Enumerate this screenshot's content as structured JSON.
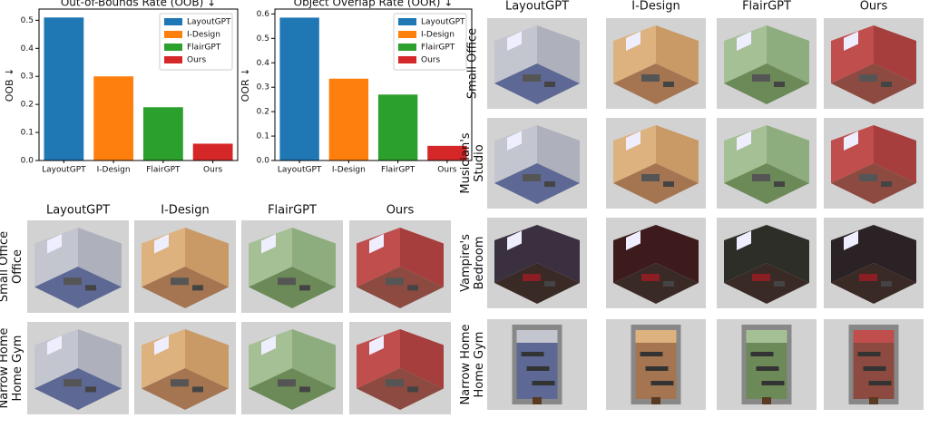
{
  "chart_data": [
    {
      "type": "bar",
      "title": "Out-of-Bounds Rate (OOB) ↓",
      "ylabel": "OOB ↓",
      "categories": [
        "LayoutGPT",
        "I-Design",
        "FlairGPT",
        "Ours"
      ],
      "values": [
        0.51,
        0.3,
        0.19,
        0.06
      ],
      "colors": [
        "#1f77b4",
        "#ff7f0e",
        "#2ca02c",
        "#d62728"
      ],
      "ylim": [
        0,
        0.54
      ],
      "yticks": [
        {
          "value": 0,
          "label": "0.0"
        },
        0.1,
        0.2,
        0.3,
        0.4,
        0.5
      ],
      "legend": "upper right"
    },
    {
      "type": "bar",
      "title": "Object Overlap Rate (OOR) ↓",
      "ylabel": "OOR ↓",
      "categories": [
        "LayoutGPT",
        "I-Design",
        "FlairGPT",
        "Ours"
      ],
      "values": [
        0.585,
        0.335,
        0.27,
        0.06
      ],
      "colors": [
        "#1f77b4",
        "#ff7f0e",
        "#2ca02c",
        "#d62728"
      ],
      "ylim": [
        0,
        0.62
      ],
      "yticks": [
        {
          "value": 0,
          "label": "0.0"
        },
        0.1,
        0.2,
        0.3,
        0.4,
        0.5,
        0.6
      ],
      "legend": "upper right"
    }
  ],
  "grid_left": {
    "columns": [
      "LayoutGPT",
      "I-Design",
      "FlairGPT",
      "Ours"
    ],
    "rows": [
      [
        "Small Office",
        "Office"
      ],
      [
        "Narrow Home",
        "Home Gym"
      ]
    ]
  },
  "grid_right": {
    "columns": [
      "LayoutGPT",
      "I-Design",
      "FlairGPT",
      "Ours"
    ],
    "rows": [
      [
        "Small Office"
      ],
      [
        "Musician's",
        "Studio"
      ],
      [
        "Vampire's",
        "Bedroom"
      ],
      [
        "Narrow Home",
        "Home Gym"
      ]
    ]
  }
}
